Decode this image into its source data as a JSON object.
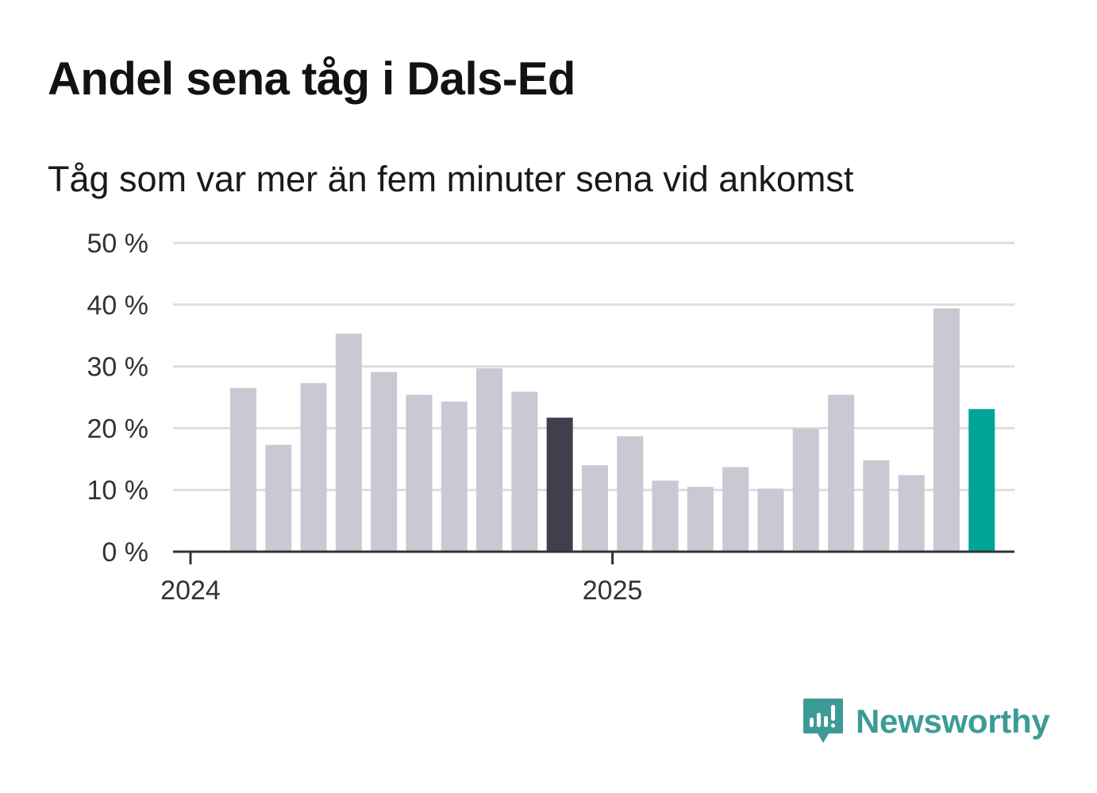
{
  "header": {
    "title": "Andel sena tåg i Dals-Ed",
    "subtitle": "Tåg som var mer än fem minuter sena vid ankomst"
  },
  "brand": {
    "name": "Newsworthy",
    "icon": "newsworthy-logo-icon",
    "color": "#3d9b96"
  },
  "colors": {
    "bar": "#c9c8d3",
    "highlight_dark": "#403f4c",
    "highlight_accent": "#00a499",
    "grid": "#dddddd",
    "axis": "#333333"
  },
  "chart_data": {
    "type": "bar",
    "x": [
      "2024-02",
      "2024-03",
      "2024-04",
      "2024-05",
      "2024-06",
      "2024-07",
      "2024-08",
      "2024-09",
      "2024-10",
      "2024-11",
      "2024-12",
      "2025-01",
      "2025-02",
      "2025-03",
      "2025-04",
      "2025-05",
      "2025-06",
      "2025-07",
      "2025-08",
      "2025-09",
      "2025-10",
      "2025-11"
    ],
    "values": [
      26.5,
      17.3,
      27.3,
      35.3,
      29.1,
      25.4,
      24.3,
      29.7,
      25.9,
      21.7,
      14.0,
      18.7,
      11.5,
      10.5,
      13.7,
      10.2,
      19.9,
      25.4,
      14.8,
      12.4,
      39.4,
      23.1
    ],
    "highlight": {
      "2024-11": "dark",
      "2025-11": "accent"
    },
    "x_tick_labels": [
      {
        "label": "2024",
        "value": "2024-01"
      },
      {
        "label": "2025",
        "value": "2025-01"
      }
    ],
    "y_ticks": [
      {
        "value": 0,
        "label": "0 %"
      },
      {
        "value": 10,
        "label": "10 %"
      },
      {
        "value": 20,
        "label": "20 %"
      },
      {
        "value": 30,
        "label": "30 %"
      },
      {
        "value": 40,
        "label": "40 %"
      },
      {
        "value": 50,
        "label": "50 %"
      }
    ],
    "ylim": [
      0,
      50
    ],
    "grid": true,
    "legend": "none"
  }
}
